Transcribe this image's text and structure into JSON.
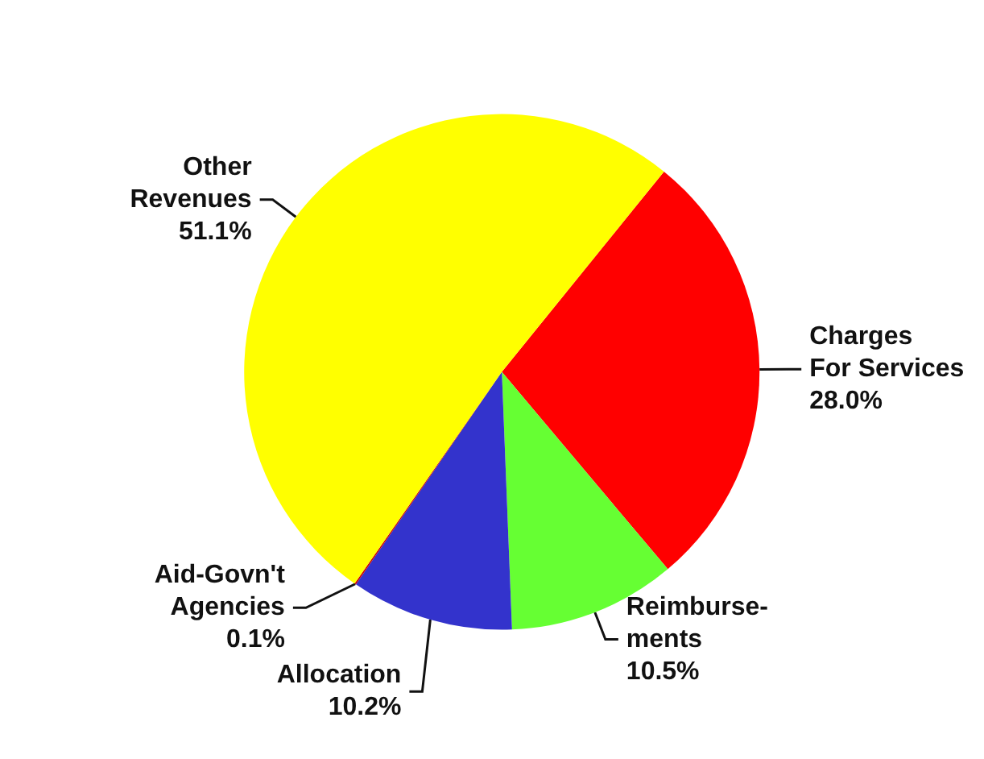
{
  "chart_data": {
    "type": "pie",
    "categories": [
      "Charges For Services",
      "Reimburse-ments",
      "Allocation",
      "Aid-Govn't Agencies",
      "Other Revenues"
    ],
    "values": [
      28.0,
      10.5,
      10.2,
      0.1,
      51.1
    ],
    "value_labels": [
      "28.0%",
      "10.5%",
      "10.2%",
      "0.1%",
      "51.1%"
    ],
    "colors": [
      "#ff0000",
      "#66ff33",
      "#3333cc",
      "#cc0000",
      "#ffff00"
    ]
  }
}
